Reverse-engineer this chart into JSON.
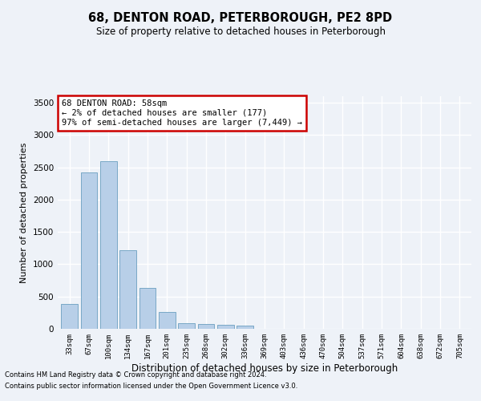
{
  "title_line1": "68, DENTON ROAD, PETERBOROUGH, PE2 8PD",
  "title_line2": "Size of property relative to detached houses in Peterborough",
  "xlabel": "Distribution of detached houses by size in Peterborough",
  "ylabel": "Number of detached properties",
  "footnote1": "Contains HM Land Registry data © Crown copyright and database right 2024.",
  "footnote2": "Contains public sector information licensed under the Open Government Licence v3.0.",
  "annotation_title": "68 DENTON ROAD: 58sqm",
  "annotation_line2": "← 2% of detached houses are smaller (177)",
  "annotation_line3": "97% of semi-detached houses are larger (7,449) →",
  "bar_labels": [
    "33sqm",
    "67sqm",
    "100sqm",
    "134sqm",
    "167sqm",
    "201sqm",
    "235sqm",
    "268sqm",
    "302sqm",
    "336sqm",
    "369sqm",
    "403sqm",
    "436sqm",
    "470sqm",
    "504sqm",
    "537sqm",
    "571sqm",
    "604sqm",
    "638sqm",
    "672sqm",
    "705sqm"
  ],
  "bar_values": [
    390,
    2420,
    2600,
    1220,
    630,
    255,
    90,
    70,
    60,
    55,
    5,
    5,
    0,
    0,
    0,
    0,
    0,
    0,
    0,
    0,
    0
  ],
  "bar_color": "#b8cfe8",
  "bar_edge_color": "#6a9fc0",
  "background_color": "#eef2f8",
  "grid_color": "#ffffff",
  "annotation_box_color": "#ffffff",
  "annotation_box_edge": "#cc0000",
  "ylim": [
    0,
    3600
  ],
  "yticks": [
    0,
    500,
    1000,
    1500,
    2000,
    2500,
    3000,
    3500
  ]
}
